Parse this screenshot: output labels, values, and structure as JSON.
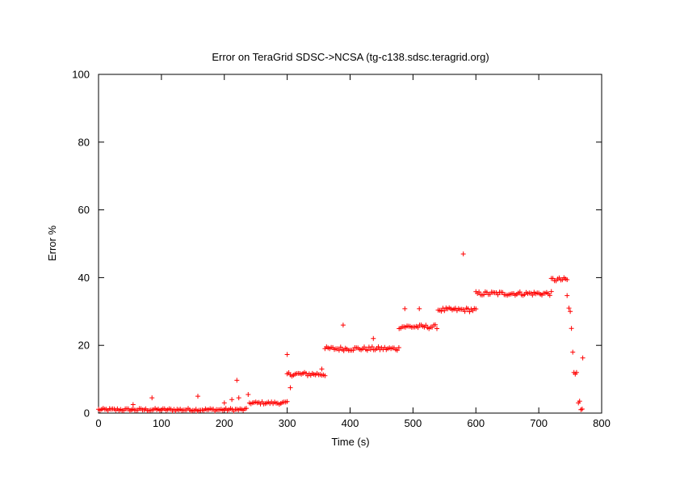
{
  "chart_data": {
    "type": "scatter",
    "title": "Error on TeraGrid SDSC->NCSA (tg-c138.sdsc.teragrid.org)",
    "xlabel": "Time (s)",
    "ylabel": "Error %",
    "xlim": [
      0,
      800
    ],
    "ylim": [
      0,
      100
    ],
    "xticks": [
      "0",
      "100",
      "200",
      "300",
      "400",
      "500",
      "600",
      "700",
      "800"
    ],
    "yticks": [
      "0",
      "20",
      "40",
      "60",
      "80",
      "100"
    ],
    "marker": "+",
    "color": "#ff0000",
    "grid": false,
    "legend": "none",
    "levels": [
      {
        "x_start": 0,
        "x_end": 235,
        "y": 1.0
      },
      {
        "x_start": 240,
        "x_end": 300,
        "y": 3.0
      },
      {
        "x_start": 300,
        "x_end": 360,
        "y": 11.5
      },
      {
        "x_start": 360,
        "x_end": 478,
        "y": 19.0
      },
      {
        "x_start": 478,
        "x_end": 540,
        "y": 25.5
      },
      {
        "x_start": 540,
        "x_end": 600,
        "y": 30.5
      },
      {
        "x_start": 600,
        "x_end": 720,
        "y": 35.3
      },
      {
        "x_start": 720,
        "x_end": 745,
        "y": 39.4
      }
    ],
    "outliers": [
      {
        "x": 55,
        "y": 2.5
      },
      {
        "x": 85,
        "y": 4.5
      },
      {
        "x": 158,
        "y": 5.0
      },
      {
        "x": 200,
        "y": 3.0
      },
      {
        "x": 212,
        "y": 4.0
      },
      {
        "x": 220,
        "y": 9.7
      },
      {
        "x": 223,
        "y": 4.5
      },
      {
        "x": 238,
        "y": 5.5
      },
      {
        "x": 300,
        "y": 17.3
      },
      {
        "x": 305,
        "y": 7.5
      },
      {
        "x": 355,
        "y": 13.0
      },
      {
        "x": 389,
        "y": 26.0
      },
      {
        "x": 437,
        "y": 22.0
      },
      {
        "x": 487,
        "y": 30.8
      },
      {
        "x": 510,
        "y": 30.8
      },
      {
        "x": 580,
        "y": 47.0
      },
      {
        "x": 745,
        "y": 34.7
      },
      {
        "x": 748,
        "y": 31.0
      },
      {
        "x": 750,
        "y": 30.0
      },
      {
        "x": 752,
        "y": 25.0
      },
      {
        "x": 754,
        "y": 18.0
      },
      {
        "x": 756,
        "y": 12.0
      },
      {
        "x": 758,
        "y": 11.5
      },
      {
        "x": 760,
        "y": 12.0
      },
      {
        "x": 763,
        "y": 3.0
      },
      {
        "x": 765,
        "y": 3.5
      },
      {
        "x": 767,
        "y": 1.0
      },
      {
        "x": 769,
        "y": 1.2
      },
      {
        "x": 770,
        "y": 16.3
      }
    ]
  }
}
